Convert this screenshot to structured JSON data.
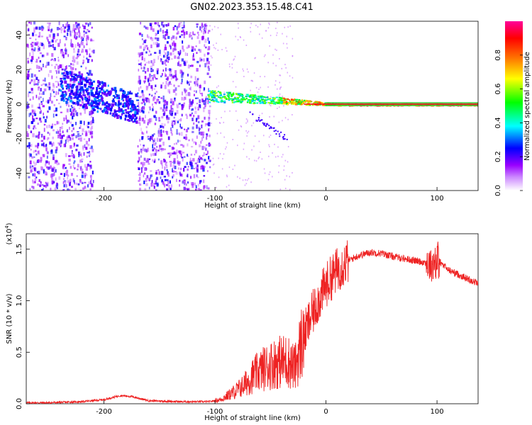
{
  "title": "GN02.2023.353.15.48.C41",
  "chart_data": [
    {
      "type": "heatmap",
      "xlabel": "Height of straight line (km)",
      "ylabel": "Frequency (Hz)",
      "xlim": [
        -270,
        137
      ],
      "ylim": [
        -50,
        48
      ],
      "xticks": [
        -200,
        -100,
        0,
        100
      ],
      "yticks": [
        -40,
        -20,
        0,
        20,
        40
      ],
      "colorbar": {
        "label": "Normalized spectral amplitude",
        "range": [
          0,
          1
        ],
        "ticks": [
          0.0,
          0.2,
          0.4,
          0.6,
          0.8
        ],
        "colors": [
          "#ffffff",
          "#9900ff",
          "#0000ff",
          "#00ffff",
          "#00ff00",
          "#ffff00",
          "#ff7700",
          "#ff0000",
          "#ff0099"
        ]
      },
      "features": {
        "noise_bands_km": [
          [
            -270,
            -210
          ],
          [
            -170,
            -105
          ]
        ],
        "ridge_start_km": -108,
        "ridge_start_freq_hz": 5,
        "ridge_end_freq_hz": 0
      }
    },
    {
      "type": "line",
      "xlabel": "Height of straight line (km)",
      "ylabel": "SNR (10 * v/v)",
      "y_scale_label": "(x10",
      "y_scale_exp": "4",
      "y_scale_close": ")",
      "xlim": [
        -270,
        137
      ],
      "ylim": [
        0,
        1.65
      ],
      "xticks": [
        -200,
        -100,
        0,
        100
      ],
      "yticks": [
        0.0,
        0.5,
        1.0,
        1.5
      ],
      "series": [
        {
          "color": "#ee2222",
          "x": [
            -270,
            -250,
            -220,
            -200,
            -185,
            -175,
            -160,
            -130,
            -105,
            -95,
            -85,
            -75,
            -65,
            -55,
            -45,
            -35,
            -28,
            -22,
            -15,
            -8,
            0,
            10,
            20,
            30,
            40,
            50,
            60,
            70,
            80,
            90,
            95,
            100,
            110,
            120,
            130,
            137
          ],
          "y": [
            0.01,
            0.01,
            0.02,
            0.04,
            0.08,
            0.07,
            0.03,
            0.02,
            0.02,
            0.04,
            0.1,
            0.17,
            0.28,
            0.35,
            0.4,
            0.42,
            0.35,
            0.6,
            0.8,
            0.98,
            1.15,
            1.3,
            1.39,
            1.44,
            1.47,
            1.46,
            1.43,
            1.41,
            1.39,
            1.37,
            1.35,
            1.4,
            1.3,
            1.25,
            1.2,
            1.17
          ]
        }
      ]
    }
  ],
  "tick_format": {
    "x": [
      "-200",
      "-100",
      "0",
      "100"
    ],
    "y_top": [
      "-40",
      "-20",
      "0",
      "20",
      "40"
    ],
    "y_bottom": [
      "0.0",
      "0.5",
      "1.0",
      "1.5"
    ],
    "colorbar": [
      "0.0",
      "0.2",
      "0.4",
      "0.6",
      "0.8"
    ]
  }
}
